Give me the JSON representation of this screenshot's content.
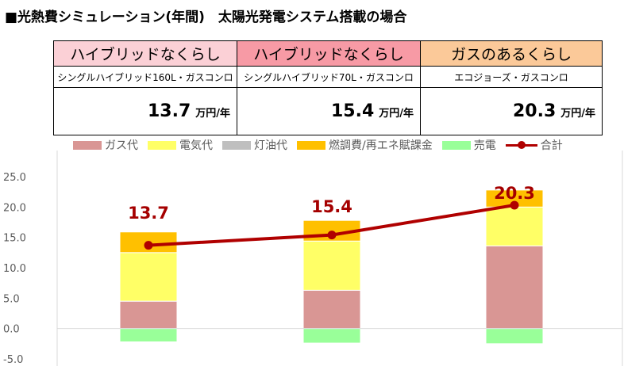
{
  "title": "■光熱費シミュレーション(年間)　太陽光発電システム搭載の場合",
  "table": {
    "columns": [
      {
        "header": "ハイブリッドなくらし",
        "header_color": "#fbd0d6",
        "subtitle": "シングルハイブリッド160L・ガスコンロ",
        "value": "13.7",
        "unit": "万円/年"
      },
      {
        "header": "ハイブリッドなくらし",
        "header_color": "#f79aa5",
        "subtitle": "シングルハイブリッド70L・ガスコンロ",
        "value": "15.4",
        "unit": "万円/年"
      },
      {
        "header": "ガスのあるくらし",
        "header_color": "#fbc999",
        "subtitle": "エコジョーズ・ガスコンロ",
        "value": "20.3",
        "unit": "万円/年"
      }
    ]
  },
  "chart_data": {
    "type": "bar",
    "stacked": true,
    "categories": [
      "シングルハイブリッド160L・ガスコンロ",
      "シングルハイブリッド70L・ガスコンロ",
      "エコジョーズ・ガスコンロ"
    ],
    "series": [
      {
        "name": "ガス代",
        "color": "#d99694",
        "values": [
          4.5,
          6.3,
          13.6
        ]
      },
      {
        "name": "電気代",
        "color": "#ffff66",
        "values": [
          8.0,
          8.1,
          6.4
        ]
      },
      {
        "name": "灯油代",
        "color": "#bfbfbf",
        "values": [
          0,
          0,
          0
        ]
      },
      {
        "name": "燃調費/再エネ賦課金",
        "color": "#ffc000",
        "values": [
          3.4,
          3.4,
          2.8
        ]
      },
      {
        "name": "売電",
        "color": "#99ff99",
        "values": [
          -2.2,
          -2.4,
          -2.5
        ]
      }
    ],
    "line": {
      "name": "合計",
      "color": "#b00000",
      "values": [
        13.7,
        15.4,
        20.3
      ]
    },
    "data_labels": [
      "13.7",
      "15.4",
      "20.3"
    ],
    "y_ticks": [
      "25.0",
      "20.0",
      "15.0",
      "10.0",
      "5.0",
      "0.0",
      "-5.0"
    ],
    "ylim": [
      -5,
      25
    ],
    "legend_position": "top"
  }
}
